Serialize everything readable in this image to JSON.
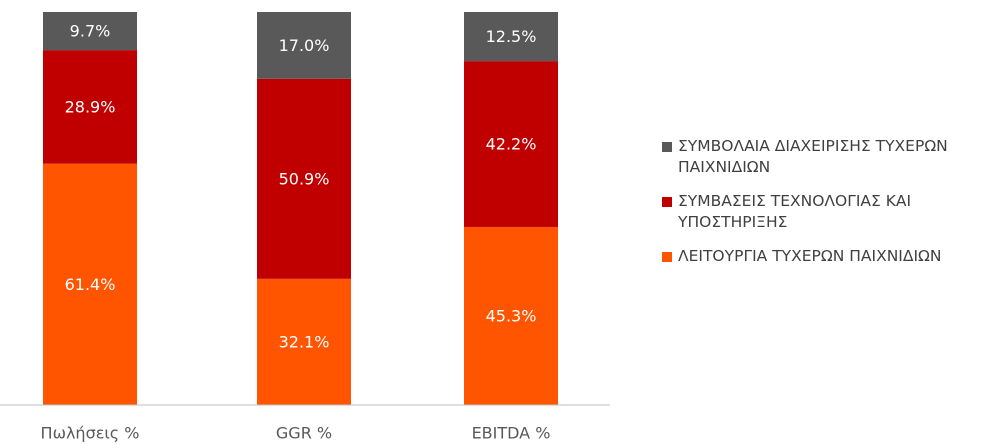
{
  "chart_data": {
    "type": "stacked-bar",
    "categories": [
      "Πωλήσεις %",
      "GGR %",
      "EBITDA %"
    ],
    "series": [
      {
        "name": "ΛΕΙΤΟΥΡΓΙΑ ΤΥΧΕΡΩΝ ΠΑΙΧΝΙΔΙΩΝ",
        "color": "#ff5500",
        "values": [
          61.4,
          32.1,
          45.3
        ],
        "value_labels": [
          "61.4%",
          "32.1%",
          "45.3%"
        ]
      },
      {
        "name": "ΣΥΜΒΑΣΕΙΣ ΤΕΧΝΟΛΟΓΙΑΣ ΚΑΙ ΥΠΟΣΤΗΡΙΞΗΣ",
        "color": "#c00000",
        "values": [
          28.9,
          50.9,
          42.2
        ],
        "value_labels": [
          "28.9%",
          "50.9%",
          "42.2%"
        ]
      },
      {
        "name": "ΣΥΜΒΟΛΑΙΑ ΔΙΑΧΕΙΡΙΣΗΣ ΤΥΧΕΡΩΝ ΠΑΙΧΝΙΔΙΩΝ",
        "color": "#595959",
        "values": [
          9.7,
          17.0,
          12.5
        ],
        "value_labels": [
          "9.7%",
          "17.0%",
          "12.5%"
        ]
      }
    ],
    "ylim": [
      0,
      100
    ],
    "legend": "right"
  }
}
